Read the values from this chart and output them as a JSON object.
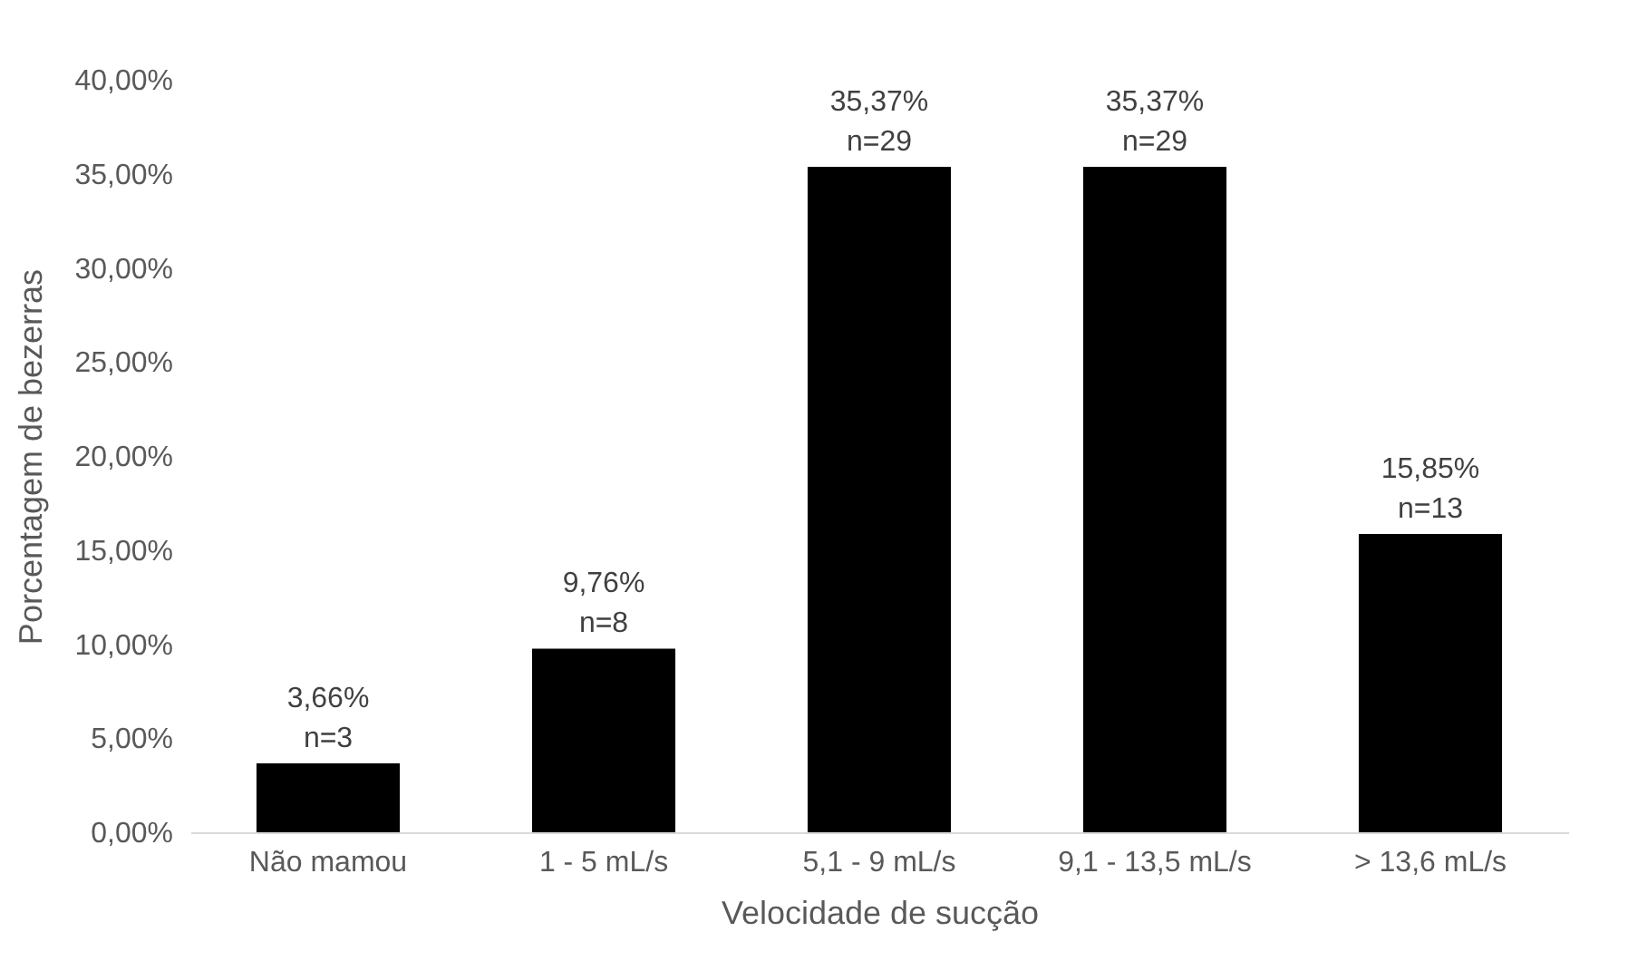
{
  "chart_data": {
    "type": "bar",
    "xlabel": "Velocidade de sucção",
    "ylabel": "Porcentagem de bezerras",
    "categories": [
      "Não mamou",
      "1 - 5 mL/s",
      "5,1 - 9 mL/s",
      "9,1 - 13,5 mL/s",
      "> 13,6 mL/s"
    ],
    "values": [
      3.66,
      9.76,
      35.37,
      35.37,
      15.85
    ],
    "value_labels": [
      "3,66%\nn=3",
      "9,76%\nn=8",
      "35,37%\nn=29",
      "35,37%\nn=29",
      "15,85%\nn=13"
    ],
    "color": "#000000",
    "ylim": [
      0,
      40
    ],
    "yticks": [
      {
        "value": 0,
        "label": "0,00%"
      },
      {
        "value": 5,
        "label": "5,00%"
      },
      {
        "value": 10,
        "label": "10,00%"
      },
      {
        "value": 15,
        "label": "15,00%"
      },
      {
        "value": 20,
        "label": "20,00%"
      },
      {
        "value": 25,
        "label": "25,00%"
      },
      {
        "value": 30,
        "label": "30,00%"
      },
      {
        "value": 35,
        "label": "35,00%"
      },
      {
        "value": 40,
        "label": "40,00%"
      }
    ],
    "grid": false
  }
}
